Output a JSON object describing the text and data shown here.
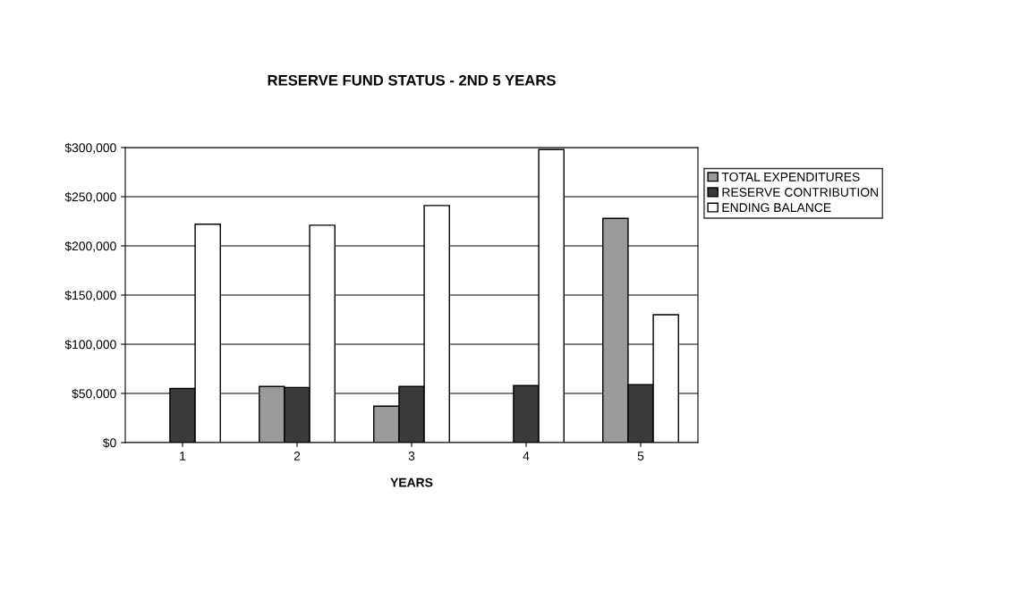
{
  "chart_data": {
    "type": "bar",
    "title": "RESERVE FUND STATUS - 2ND 5 YEARS",
    "xlabel": "YEARS",
    "categories": [
      "1",
      "2",
      "3",
      "4",
      "5"
    ],
    "series": [
      {
        "name": "TOTAL EXPENDITURES",
        "color": "#9a9a9a",
        "values": [
          null,
          57000,
          37000,
          null,
          228000
        ]
      },
      {
        "name": "RESERVE CONTRIBUTION",
        "color": "#3a3a3a",
        "values": [
          55000,
          56000,
          57000,
          58000,
          59000
        ]
      },
      {
        "name": "ENDING BALANCE",
        "color": "#ffffff",
        "values": [
          222000,
          221000,
          241000,
          298000,
          130000
        ]
      }
    ],
    "ylim": [
      0,
      300000
    ],
    "yticks": [
      {
        "value": 0,
        "label": "$0"
      },
      {
        "value": 50000,
        "label": "$50,000"
      },
      {
        "value": 100000,
        "label": "$100,000"
      },
      {
        "value": 150000,
        "label": "$150,000"
      },
      {
        "value": 200000,
        "label": "$200,000"
      },
      {
        "value": 250000,
        "label": "$250,000"
      },
      {
        "value": 300000,
        "label": "$300,000"
      }
    ],
    "grid": "y",
    "legend": "right"
  }
}
